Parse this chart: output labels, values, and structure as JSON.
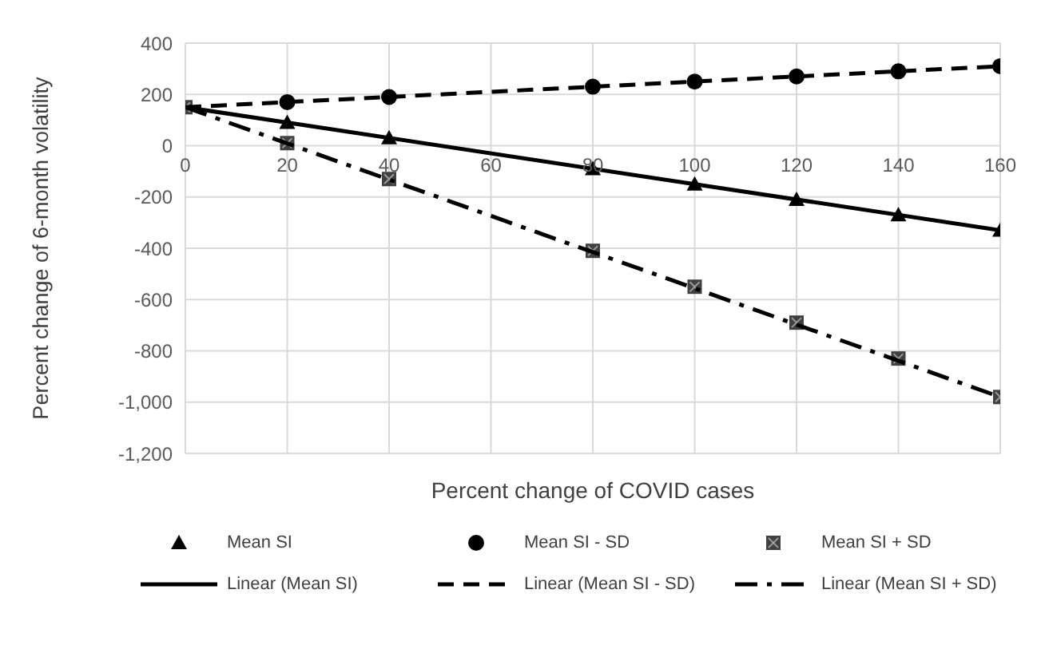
{
  "chart_data": {
    "type": "scatter",
    "xlabel": "Percent change of COVID cases",
    "ylabel": "Percent change of 6-month volatility",
    "xlim": [
      0,
      160
    ],
    "xticks": [
      0,
      20,
      40,
      60,
      80,
      100,
      120,
      140,
      160
    ],
    "ylim": [
      -1200,
      400
    ],
    "yticks": [
      {
        "value": -1200,
        "label": "-1,200"
      },
      {
        "value": -1000,
        "label": "-1,000"
      },
      -800,
      -600,
      -400,
      -200,
      0,
      200,
      400
    ],
    "grid": true,
    "legend": "bottom",
    "series": [
      {
        "name": "Mean SI",
        "marker": "triangle",
        "color": "#000000",
        "x": [
          20,
          40,
          80,
          100,
          120,
          140,
          160
        ],
        "values": [
          90,
          30,
          -90,
          -150,
          -210,
          -270,
          -330
        ]
      },
      {
        "name": "Mean SI - SD",
        "marker": "circle",
        "color": "#000000",
        "x": [
          20,
          40,
          80,
          100,
          120,
          140,
          160
        ],
        "values": [
          170,
          190,
          230,
          250,
          270,
          290,
          310
        ]
      },
      {
        "name": "Mean SI + SD",
        "marker": "square",
        "color": "#404040",
        "x": [
          0,
          20,
          40,
          80,
          100,
          120,
          140,
          160
        ],
        "values": [
          150,
          10,
          -130,
          -410,
          -550,
          -690,
          -830,
          -980
        ]
      },
      {
        "name": "Linear (Mean SI)",
        "type": "line",
        "line_style": "solid",
        "color": "#000000",
        "x": [
          0,
          160
        ],
        "values": [
          150,
          -330
        ]
      },
      {
        "name": "Linear (Mean SI - SD)",
        "type": "line",
        "line_style": "dashed",
        "color": "#000000",
        "x": [
          0,
          160
        ],
        "values": [
          150,
          310
        ]
      },
      {
        "name": "Linear (Mean SI + SD)",
        "type": "line",
        "line_style": "dashdot",
        "color": "#000000",
        "x": [
          0,
          160
        ],
        "values": [
          150,
          -980
        ]
      }
    ]
  }
}
